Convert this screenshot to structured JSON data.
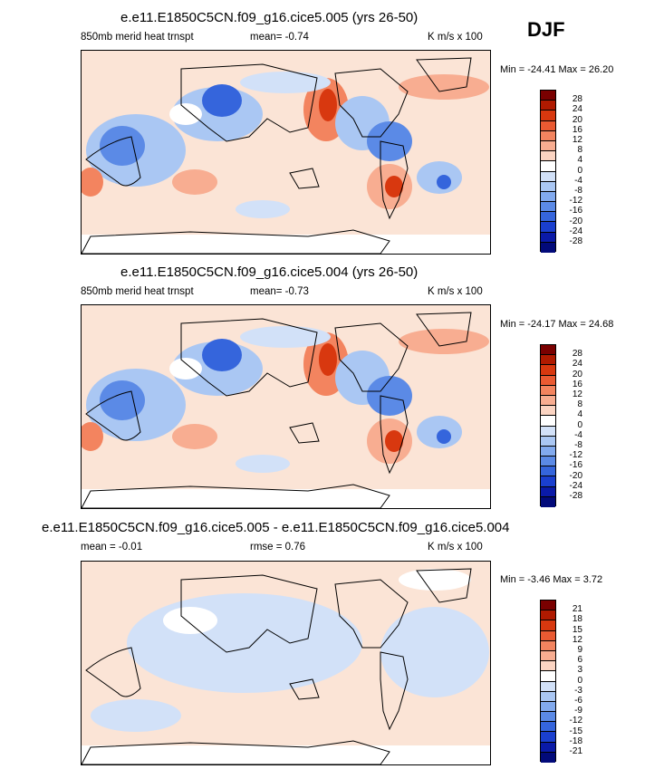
{
  "season": "DJF",
  "panels": [
    {
      "title": "e.e11.E1850C5CN.f09_g16.cice5.005 (yrs 26-50)",
      "left_label": "850mb merid heat trnspt",
      "center_label": "mean=  -0.74",
      "units": "K m/s x 100",
      "minmax": "Min = -24.41 Max =  26.20",
      "levels": [
        "28",
        "24",
        "20",
        "16",
        "12",
        "8",
        "4",
        "0",
        "-4",
        "-8",
        "-12",
        "-16",
        "-20",
        "-24",
        "-28"
      ]
    },
    {
      "title": "e.e11.E1850C5CN.f09_g16.cice5.004 (yrs 26-50)",
      "left_label": "850mb merid heat trnspt",
      "center_label": "mean=  -0.73",
      "units": "K m/s x 100",
      "minmax": "Min = -24.17 Max =  24.68",
      "levels": [
        "28",
        "24",
        "20",
        "16",
        "12",
        "8",
        "4",
        "0",
        "-4",
        "-8",
        "-12",
        "-16",
        "-20",
        "-24",
        "-28"
      ]
    },
    {
      "title": "e.e11.E1850C5CN.f09_g16.cice5.005 - e.e11.E1850C5CN.f09_g16.cice5.004",
      "left_label": "mean =  -0.01",
      "center_label": "rmse =   0.76",
      "units": "K m/s x 100",
      "minmax": "Min =  -3.46 Max =   3.72",
      "levels": [
        "21",
        "18",
        "15",
        "12",
        "9",
        "6",
        "3",
        "0",
        "-3",
        "-6",
        "-9",
        "-12",
        "-15",
        "-18",
        "-21"
      ]
    }
  ],
  "colorbar_colors": [
    "#7a0000",
    "#b01a00",
    "#d8380f",
    "#ea5a32",
    "#f3845f",
    "#f8ad91",
    "#fbd4c2",
    "#ffffff",
    "#d2e1f8",
    "#aac7f3",
    "#82aaee",
    "#5b8ae6",
    "#3565dc",
    "#1a3fcf",
    "#0a1aa8",
    "#020a7a"
  ]
}
